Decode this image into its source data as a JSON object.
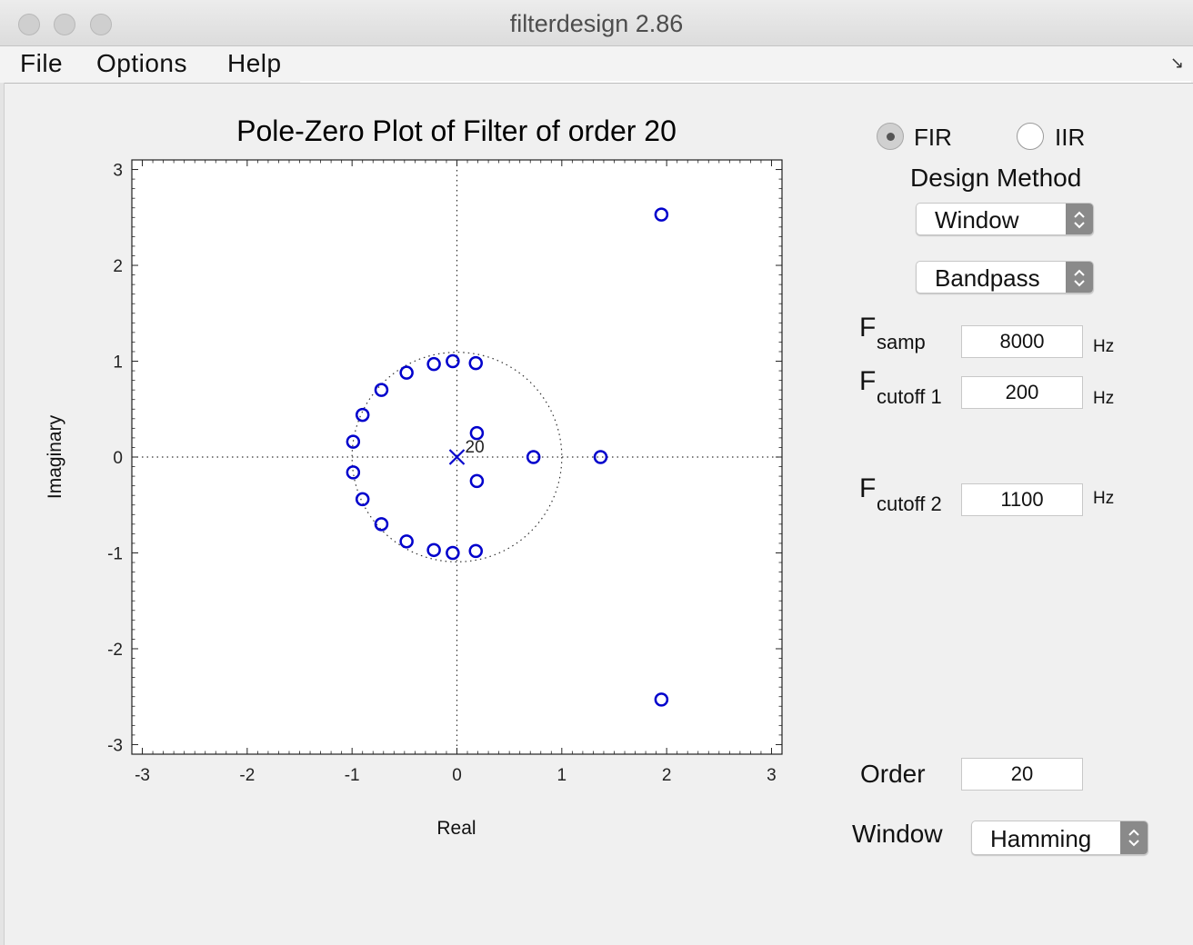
{
  "window": {
    "title": "filterdesign 2.86"
  },
  "menu": {
    "file": "File",
    "options": "Options",
    "help": "Help"
  },
  "chart_data": {
    "type": "scatter",
    "title": "Pole-Zero Plot of Filter of order 20",
    "xlabel": "Real",
    "ylabel": "Imaginary",
    "xlim": [
      -3.1,
      3.1
    ],
    "ylim": [
      -3.1,
      3.1
    ],
    "xticks": [
      -3,
      -2,
      -1,
      0,
      1,
      2,
      3
    ],
    "yticks": [
      -3,
      -2,
      -1,
      0,
      1,
      2,
      3
    ],
    "grid": false,
    "unit_circle": true,
    "zeros_marker": "o",
    "zeros_color": "#0000cc",
    "zeros": [
      {
        "x": 1.95,
        "y": 2.53
      },
      {
        "x": 1.95,
        "y": -2.53
      },
      {
        "x": 1.37,
        "y": 0.0
      },
      {
        "x": 0.73,
        "y": 0.0
      },
      {
        "x": 0.19,
        "y": 0.25
      },
      {
        "x": 0.19,
        "y": -0.25
      },
      {
        "x": 0.18,
        "y": 0.98
      },
      {
        "x": 0.18,
        "y": -0.98
      },
      {
        "x": -0.04,
        "y": 1.0
      },
      {
        "x": -0.04,
        "y": -1.0
      },
      {
        "x": -0.22,
        "y": 0.97
      },
      {
        "x": -0.22,
        "y": -0.97
      },
      {
        "x": -0.48,
        "y": 0.88
      },
      {
        "x": -0.48,
        "y": -0.88
      },
      {
        "x": -0.72,
        "y": 0.7
      },
      {
        "x": -0.72,
        "y": -0.7
      },
      {
        "x": -0.9,
        "y": 0.44
      },
      {
        "x": -0.9,
        "y": -0.44
      },
      {
        "x": -0.99,
        "y": 0.16
      },
      {
        "x": -0.99,
        "y": -0.16
      }
    ],
    "poles_marker": "x",
    "poles": [
      {
        "x": 0.0,
        "y": 0.0,
        "multiplicity": "20"
      }
    ]
  },
  "panel": {
    "fir_label": "FIR",
    "iir_label": "IIR",
    "selected_type": "FIR",
    "design_method_heading": "Design Method",
    "design_method_value": "Window",
    "band_type_value": "Bandpass",
    "fsamp_sub": "samp",
    "fsamp_value": "8000",
    "fcutoff1_sub": "cutoff 1",
    "fcutoff1_value": "200",
    "fcutoff2_sub": "cutoff 2",
    "fcutoff2_value": "1100",
    "param_letter": "F",
    "unit": "Hz",
    "order_label": "Order",
    "order_value": "20",
    "window_label": "Window",
    "window_value": "Hamming"
  }
}
